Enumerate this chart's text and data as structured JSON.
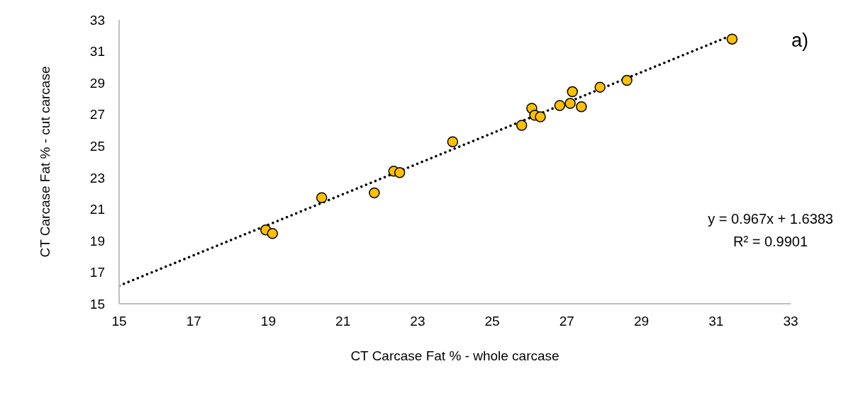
{
  "chart_data": {
    "type": "scatter",
    "xlabel": "CT Carcase Fat % - whole carcase",
    "ylabel": "CT Carcase Fat % - cut carcase",
    "xlim": [
      15,
      33
    ],
    "xticks": [
      15,
      17,
      19,
      21,
      23,
      25,
      27,
      29,
      31,
      33
    ],
    "ylim": [
      15,
      33
    ],
    "yticks": [
      15,
      17,
      19,
      21,
      23,
      25,
      27,
      29,
      31,
      33
    ],
    "series": [
      {
        "color": "#ffc000",
        "marker": "circle",
        "x": [
          18.93,
          19.11,
          20.43,
          21.84,
          22.36,
          22.52,
          23.94,
          25.79,
          26.06,
          26.14,
          26.29,
          26.81,
          27.09,
          27.15,
          27.39,
          27.89,
          28.61,
          31.43
        ],
        "values": [
          19.68,
          19.45,
          21.72,
          22.03,
          23.4,
          23.31,
          25.27,
          26.31,
          27.39,
          26.95,
          26.85,
          27.57,
          27.7,
          28.44,
          27.49,
          28.73,
          29.16,
          31.78
        ]
      },
      {
        "type": "line",
        "color": "#000000",
        "line_style": "dotted",
        "marker": "none",
        "x": [
          15,
          31.43
        ],
        "values": [
          16.14,
          32.03
        ]
      }
    ],
    "annotations": [
      "a)",
      "y = 0.967x + 1.6383",
      "R² = 0.9901"
    ]
  }
}
